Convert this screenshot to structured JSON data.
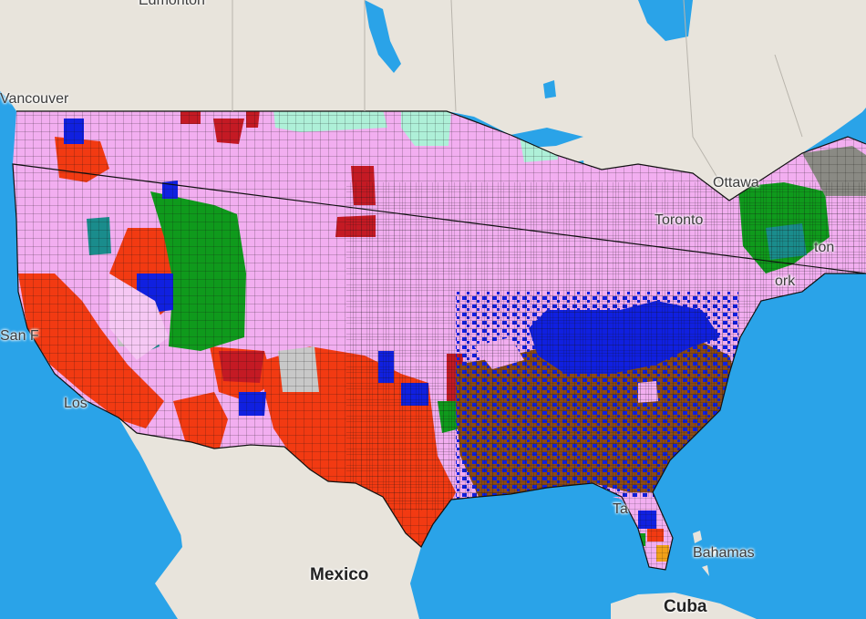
{
  "map": {
    "labels": {
      "edmonton": "Edmonton",
      "vancouver": "Vancouver",
      "ottawa": "Ottawa",
      "toronto": "Toronto",
      "boston_partial": "ton",
      "new_york_partial": "ork",
      "san_francisco_partial": "San F",
      "los_angeles_partial": "Los",
      "tampa_partial": "Ta",
      "mexico": "Mexico",
      "bahamas": "Bahamas",
      "cuba": "Cuba"
    },
    "colors": {
      "water": "#2aa3e8",
      "land": "#e8e4dc",
      "pink": "#f2aef0",
      "red": "#f23a12",
      "darkred": "#c41a24",
      "blue": "#1020e0",
      "brown": "#8b4a18",
      "green": "#0f9a1c",
      "teal": "#1a8c8c",
      "mint": "#aef0d8",
      "gray": "#8a8a84",
      "lightgray": "#c8c8c8",
      "darkgreen": "#157a3a",
      "orange": "#f0a018",
      "purple": "#9a2ad0",
      "border": "#111111"
    }
  }
}
